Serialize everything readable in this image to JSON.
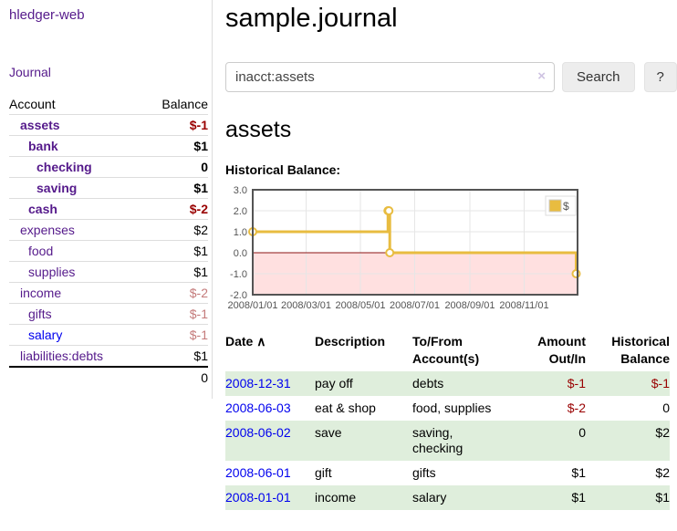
{
  "app": {
    "brand": "hledger-web"
  },
  "sidebar": {
    "journal_link": "Journal",
    "accounts_table": {
      "headers": {
        "account": "Account",
        "balance": "Balance"
      },
      "accounts": [
        {
          "name": "assets",
          "depth": 1,
          "balance": "$-1",
          "bold": true,
          "balance_color": "dark-red",
          "name_color": "purple"
        },
        {
          "name": "bank",
          "depth": 2,
          "balance": "$1",
          "bold": true,
          "balance_color": "black",
          "name_color": "purple"
        },
        {
          "name": "checking",
          "depth": 3,
          "balance": "0",
          "bold": true,
          "balance_color": "black",
          "name_color": "purple"
        },
        {
          "name": "saving",
          "depth": 3,
          "balance": "$1",
          "bold": true,
          "balance_color": "black",
          "name_color": "purple"
        },
        {
          "name": "cash",
          "depth": 2,
          "balance": "$-2",
          "bold": true,
          "balance_color": "dark-red",
          "name_color": "purple"
        },
        {
          "name": "expenses",
          "depth": 1,
          "balance": "$2",
          "bold": false,
          "balance_color": "black",
          "name_color": "purple"
        },
        {
          "name": "food",
          "depth": 2,
          "balance": "$1",
          "bold": false,
          "balance_color": "black",
          "name_color": "purple"
        },
        {
          "name": "supplies",
          "depth": 2,
          "balance": "$1",
          "bold": false,
          "balance_color": "black",
          "name_color": "purple"
        },
        {
          "name": "income",
          "depth": 1,
          "balance": "$-2",
          "bold": false,
          "balance_color": "light-red",
          "name_color": "purple"
        },
        {
          "name": "gifts",
          "depth": 2,
          "balance": "$-1",
          "bold": false,
          "balance_color": "light-red",
          "name_color": "purple"
        },
        {
          "name": "salary",
          "depth": 2,
          "balance": "$-1",
          "bold": false,
          "balance_color": "light-red",
          "name_color": "blue"
        },
        {
          "name": "liabilities:debts",
          "depth": 1,
          "balance": "$1",
          "bold": false,
          "balance_color": "black",
          "name_color": "purple"
        }
      ],
      "total": "0"
    }
  },
  "header": {
    "title": "sample.journal"
  },
  "search": {
    "value": "inacct:assets",
    "clear_icon": "×",
    "search_button": "Search",
    "help_button": "?"
  },
  "account_page": {
    "title": "assets",
    "chart_label": "Historical Balance:"
  },
  "chart_data": {
    "type": "line",
    "step": true,
    "title": "Historical Balance",
    "series": [
      {
        "name": "$",
        "color": "#e8bc40",
        "points": [
          [
            "2008-01-01",
            1
          ],
          [
            "2008-06-01",
            2
          ],
          [
            "2008-06-02",
            2
          ],
          [
            "2008-06-03",
            0
          ],
          [
            "2008-12-31",
            -1
          ]
        ]
      }
    ],
    "x_range": [
      "2008-01-01",
      "2008-12-31"
    ],
    "ylim": [
      -2,
      3
    ],
    "y_ticks": [
      3.0,
      2.0,
      1.0,
      0.0,
      -1.0,
      -2.0
    ],
    "x_ticks": [
      "2008/01/01",
      "2008/03/01",
      "2008/05/01",
      "2008/07/01",
      "2008/09/01",
      "2008/11/01"
    ],
    "legend": {
      "label": "$",
      "position": "top-right"
    },
    "grid": true,
    "grid_color": "#e6e6e6",
    "border_color": "#545454",
    "tick_label_color": "#545454",
    "zero_line_color": "#8b1515",
    "negative_region_fill": "rgba(255,0,0,0.12)"
  },
  "register": {
    "columns": [
      {
        "lines": [
          "Date"
        ],
        "sort_indicator": "∧"
      },
      {
        "lines": [
          "Description"
        ]
      },
      {
        "lines": [
          "To/From",
          "Account(s)"
        ]
      },
      {
        "lines": [
          "Amount",
          "Out/In"
        ],
        "align": "right"
      },
      {
        "lines": [
          "Historical",
          "Balance"
        ],
        "align": "right"
      }
    ],
    "rows": [
      {
        "date": "2008-12-31",
        "description": "pay off",
        "accounts": "debts",
        "amount": "$-1",
        "balance": "$-1"
      },
      {
        "date": "2008-06-03",
        "description": "eat & shop",
        "accounts": "food, supplies",
        "amount": "$-2",
        "balance": "0"
      },
      {
        "date": "2008-06-02",
        "description": "save",
        "accounts": "saving, checking",
        "amount": "0",
        "balance": "$2"
      },
      {
        "date": "2008-06-01",
        "description": "gift",
        "accounts": "gifts",
        "amount": "$1",
        "balance": "$2"
      },
      {
        "date": "2008-01-01",
        "description": "income",
        "accounts": "salary",
        "amount": "$1",
        "balance": "$1"
      }
    ]
  },
  "colors": {
    "visited_link_purple": "#551a8b",
    "link_blue": "#0000ee",
    "negative_dark_red": "#990000",
    "negative_light_red": "#c47a7a",
    "row_stripe_green": "#dfeedc",
    "sidebar_border": "#dddddd",
    "button_bg": "#ededed"
  }
}
